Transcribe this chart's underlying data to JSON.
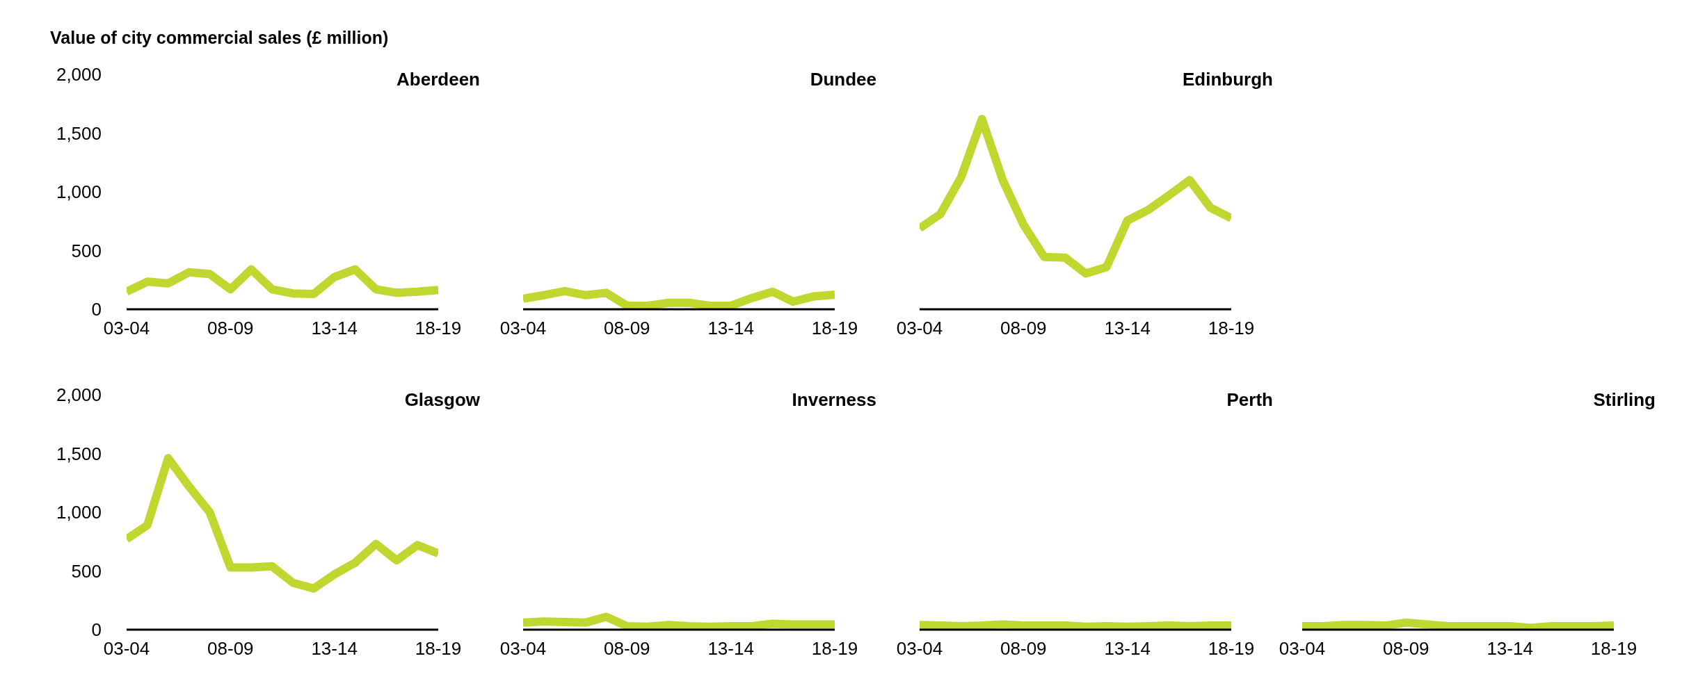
{
  "chart_data": [
    {
      "type": "line",
      "title": "Aberdeen",
      "ylabel": "Value of city commercial sales (£ million)",
      "categories": [
        "03-04",
        null,
        null,
        null,
        null,
        "08-09",
        null,
        null,
        null,
        null,
        "13-14",
        null,
        null,
        null,
        null,
        "18-19"
      ],
      "ylim": [
        0,
        2000
      ],
      "yticks": [
        {
          "value": 0,
          "label": "0"
        },
        {
          "value": 500,
          "label": "500"
        },
        {
          "value": 1000,
          "label": "1,000"
        },
        {
          "value": 1500,
          "label": "1,500"
        },
        {
          "value": 2000,
          "label": "2,000"
        }
      ],
      "series": [
        {
          "color": "#c0d72f",
          "values": [
            150,
            235,
            220,
            315,
            300,
            170,
            340,
            170,
            135,
            130,
            275,
            340,
            170,
            140,
            150,
            165
          ]
        }
      ]
    },
    {
      "type": "line",
      "title": "Dundee",
      "tick_labels": "x",
      "categories": [
        "03-04",
        null,
        null,
        null,
        null,
        "08-09",
        null,
        null,
        null,
        null,
        "13-14",
        null,
        null,
        null,
        null,
        "18-19"
      ],
      "ylim": [
        0,
        2000
      ],
      "series": [
        {
          "color": "#c0d72f",
          "values": [
            90,
            120,
            155,
            120,
            140,
            30,
            30,
            55,
            55,
            30,
            30,
            95,
            150,
            65,
            110,
            125
          ]
        }
      ]
    },
    {
      "type": "line",
      "title": "Edinburgh",
      "tick_labels": "x",
      "categories": [
        "03-04",
        null,
        null,
        null,
        null,
        "08-09",
        null,
        null,
        null,
        null,
        "13-14",
        null,
        null,
        null,
        null,
        "18-19"
      ],
      "ylim": [
        0,
        2000
      ],
      "series": [
        {
          "color": "#c0d72f",
          "values": [
            690,
            810,
            1125,
            1620,
            1100,
            720,
            445,
            440,
            305,
            360,
            755,
            845,
            970,
            1100,
            865,
            775
          ]
        }
      ]
    },
    {
      "type": "line",
      "title": "Glasgow",
      "categories": [
        "03-04",
        null,
        null,
        null,
        null,
        "08-09",
        null,
        null,
        null,
        null,
        "13-14",
        null,
        null,
        null,
        null,
        "18-19"
      ],
      "ylim": [
        0,
        2000
      ],
      "yticks": [
        {
          "value": 0,
          "label": "0"
        },
        {
          "value": 500,
          "label": "500"
        },
        {
          "value": 1000,
          "label": "1,000"
        },
        {
          "value": 1500,
          "label": "1,500"
        },
        {
          "value": 2000,
          "label": "2,000"
        }
      ],
      "series": [
        {
          "color": "#c0d72f",
          "values": [
            770,
            890,
            1460,
            1220,
            1000,
            530,
            530,
            540,
            400,
            350,
            470,
            570,
            730,
            590,
            720,
            650
          ]
        }
      ]
    },
    {
      "type": "line",
      "title": "Inverness",
      "tick_labels": "x",
      "categories": [
        "03-04",
        null,
        null,
        null,
        null,
        "08-09",
        null,
        null,
        null,
        null,
        "13-14",
        null,
        null,
        null,
        null,
        "18-19"
      ],
      "ylim": [
        0,
        2000
      ],
      "series": [
        {
          "color": "#c0d72f",
          "values": [
            60,
            70,
            65,
            60,
            110,
            30,
            25,
            40,
            30,
            25,
            30,
            30,
            50,
            45,
            45,
            45
          ]
        }
      ]
    },
    {
      "type": "line",
      "title": "Perth",
      "tick_labels": "x",
      "categories": [
        "03-04",
        null,
        null,
        null,
        null,
        "08-09",
        null,
        null,
        null,
        null,
        "13-14",
        null,
        null,
        null,
        null,
        "18-19"
      ],
      "ylim": [
        0,
        2000
      ],
      "series": [
        {
          "color": "#c0d72f",
          "values": [
            40,
            35,
            30,
            35,
            45,
            35,
            35,
            35,
            25,
            30,
            25,
            30,
            35,
            30,
            35,
            35
          ]
        }
      ]
    },
    {
      "type": "line",
      "title": "Stirling",
      "tick_labels": "x",
      "categories": [
        "03-04",
        null,
        null,
        null,
        null,
        "08-09",
        null,
        null,
        null,
        null,
        "13-14",
        null,
        null,
        null,
        null,
        "18-19"
      ],
      "ylim": [
        0,
        2000
      ],
      "series": [
        {
          "color": "#c0d72f",
          "values": [
            30,
            30,
            40,
            40,
            35,
            60,
            45,
            30,
            30,
            30,
            30,
            15,
            30,
            30,
            30,
            35
          ]
        }
      ]
    }
  ]
}
